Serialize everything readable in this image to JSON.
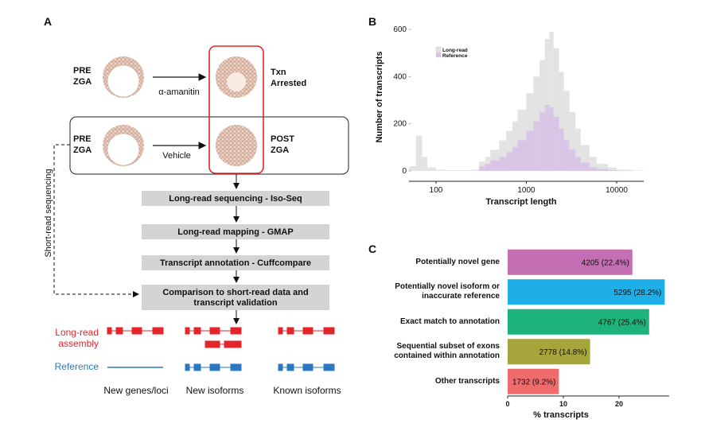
{
  "figure": {
    "panel_labels": [
      "A",
      "B",
      "C"
    ]
  },
  "diagram": {
    "pre_zga_1": [
      "PRE",
      "ZGA"
    ],
    "drug": "α-amanitin",
    "arrested": [
      "Txn",
      "Arrested"
    ],
    "pre_zga_2": [
      "PRE",
      "ZGA"
    ],
    "vehicle": "Vehicle",
    "post_zga": [
      "POST",
      "ZGA"
    ],
    "short_read": "Short-read sequencing",
    "steps": [
      "Long-read sequencing - Iso-Seq",
      "Long-read mapping - GMAP",
      "Transcript annotation - Cuffcompare",
      [
        "Comparison to short-read data and",
        "transcript validation"
      ]
    ],
    "track_long_read": [
      "Long-read",
      "assembly"
    ],
    "track_reference": "Reference",
    "columns": [
      "New genes/loci",
      "New isoforms",
      "Known isoforms"
    ]
  },
  "chart_data": [
    {
      "type": "histogram",
      "xlabel": "Transcript length",
      "ylabel": "Number of transcripts",
      "log_x": true,
      "xlim": [
        50,
        20000
      ],
      "xticks": [
        100,
        1000,
        10000
      ],
      "ylim": [
        0,
        620
      ],
      "yticks": [
        0,
        200,
        400,
        600
      ],
      "legend": "upper left",
      "bins": [
        50,
        60,
        70,
        80,
        100,
        125,
        160,
        200,
        250,
        300,
        350,
        400,
        500,
        600,
        700,
        800,
        1000,
        1200,
        1400,
        1600,
        1800,
        2000,
        2300,
        2600,
        3000,
        3500,
        4000,
        5000,
        6000,
        8000,
        10000,
        15000,
        20000
      ],
      "series": [
        {
          "name": "Long-read",
          "color": "#e3e3e3",
          "values": [
            20,
            150,
            60,
            15,
            5,
            3,
            3,
            3,
            5,
            40,
            60,
            90,
            130,
            170,
            210,
            260,
            330,
            400,
            470,
            560,
            590,
            520,
            420,
            340,
            250,
            180,
            110,
            60,
            30,
            15,
            5,
            2
          ]
        },
        {
          "name": "Reference",
          "color": "#d9c6e6",
          "values": [
            0,
            0,
            0,
            0,
            0,
            0,
            0,
            0,
            0,
            20,
            30,
            45,
            60,
            80,
            100,
            130,
            170,
            210,
            250,
            280,
            270,
            230,
            180,
            130,
            90,
            60,
            35,
            15,
            8,
            3,
            1,
            0
          ]
        }
      ]
    },
    {
      "type": "bar",
      "xlabel": "% transcripts",
      "xlim": [
        0,
        29
      ],
      "xticks": [
        0,
        10,
        20
      ],
      "categories": [
        "Potentially novel gene",
        "Potentially novel isoform or\ninaccurate reference",
        "Exact match to annotation",
        "Sequential subset of exons\ncontained within annotation",
        "Other transcripts"
      ],
      "values": [
        22.4,
        28.2,
        25.4,
        14.8,
        9.2
      ],
      "value_labels": [
        "4205 (22.4%)",
        "5295 (28.2%)",
        "4767 (25.4%)",
        "2778 (14.8%)",
        "1732 (9.2%)"
      ],
      "colors": [
        "#c46fb3",
        "#1eaee8",
        "#1db37a",
        "#a5a53b",
        "#f06b6b"
      ]
    }
  ]
}
